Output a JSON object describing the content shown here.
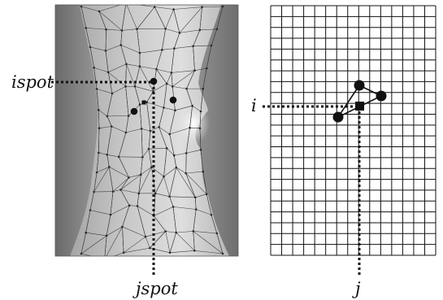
{
  "labels": {
    "ispot": "ispot",
    "jspot": "jspot",
    "i": "i",
    "j": "j"
  },
  "colors": {
    "background": "#ffffff",
    "ink": "#111111",
    "mesh": "#3a3a3a",
    "photo_dark": "#5e5e5e",
    "photo_light": "#d9d9d9",
    "highlight": "#fafafa"
  }
}
